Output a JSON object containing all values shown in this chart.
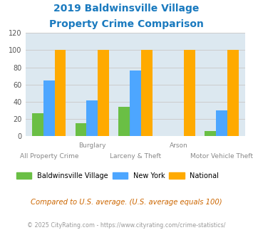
{
  "title_line1": "2019 Baldwinsville Village",
  "title_line2": "Property Crime Comparison",
  "title_color": "#1a7abf",
  "groups": [
    "All Property Crime",
    "Burglary",
    "Larceny & Theft",
    "Arson",
    "Motor Vehicle Theft"
  ],
  "top_labels": [
    "",
    "Burglary",
    "",
    "Arson",
    ""
  ],
  "bottom_labels": [
    "All Property Crime",
    "",
    "Larceny & Theft",
    "",
    "Motor Vehicle Theft"
  ],
  "baldwinsville": [
    27,
    15,
    34,
    0,
    6
  ],
  "new_york": [
    65,
    42,
    76,
    0,
    30
  ],
  "national": [
    100,
    100,
    100,
    100,
    100
  ],
  "bar_colors": [
    "#6abf45",
    "#4da6ff",
    "#ffaa00"
  ],
  "legend_labels": [
    "Baldwinsville Village",
    "New York",
    "National"
  ],
  "ylim": [
    0,
    120
  ],
  "yticks": [
    0,
    20,
    40,
    60,
    80,
    100,
    120
  ],
  "grid_color": "#cccccc",
  "bg_color": "#dce8f0",
  "footnote1": "Compared to U.S. average. (U.S. average equals 100)",
  "footnote2": "© 2025 CityRating.com - https://www.cityrating.com/crime-statistics/",
  "footnote1_color": "#cc6600",
  "footnote2_color": "#999999"
}
